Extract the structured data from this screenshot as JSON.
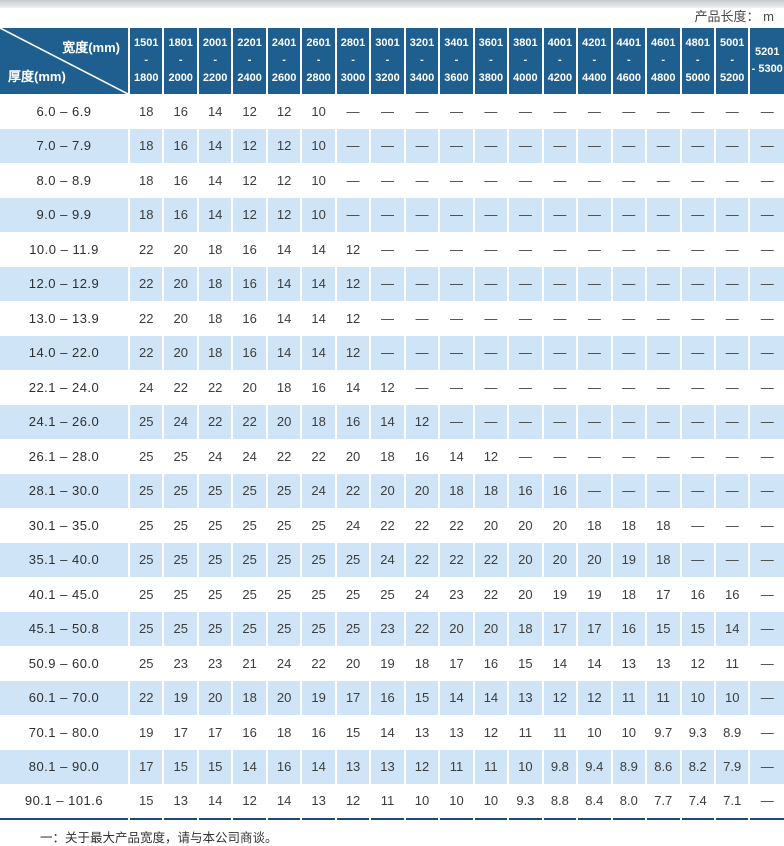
{
  "page": {
    "unit_label": "产品长度： m",
    "footnote": "一：关于最大产品宽度，请与本公司商谈。"
  },
  "colors": {
    "header_blue": "#1e5f90",
    "alt_row_blue": "#cfe4f6",
    "table_bottom_border": "#1c4c74",
    "text": "#3d3d3d"
  },
  "table": {
    "corner": {
      "width_label": "宽度(mm)",
      "thickness_label": "厚度(mm)"
    },
    "width_columns": [
      {
        "line1": "1501",
        "line2": "- 1800"
      },
      {
        "line1": "1801",
        "line2": "- 2000"
      },
      {
        "line1": "2001",
        "line2": "- 2200"
      },
      {
        "line1": "2201",
        "line2": "- 2400"
      },
      {
        "line1": "2401",
        "line2": "- 2600"
      },
      {
        "line1": "2601",
        "line2": "- 2800"
      },
      {
        "line1": "2801",
        "line2": "- 3000"
      },
      {
        "line1": "3001",
        "line2": "- 3200"
      },
      {
        "line1": "3201",
        "line2": "- 3400"
      },
      {
        "line1": "3401",
        "line2": "- 3600"
      },
      {
        "line1": "3601",
        "line2": "- 3800"
      },
      {
        "line1": "3801",
        "line2": "- 4000"
      },
      {
        "line1": "4001",
        "line2": "- 4200"
      },
      {
        "line1": "4201",
        "line2": "- 4400"
      },
      {
        "line1": "4401",
        "line2": "- 4600"
      },
      {
        "line1": "4601",
        "line2": "- 4800"
      },
      {
        "line1": "4801",
        "line2": "- 5000"
      },
      {
        "line1": "5001",
        "line2": "- 5200"
      },
      {
        "line1": "5201",
        "line2": "- 5300"
      }
    ],
    "rows": [
      {
        "label": "6.0 –  6.9",
        "values": [
          "18",
          "16",
          "14",
          "12",
          "12",
          "10",
          "—",
          "—",
          "—",
          "—",
          "—",
          "—",
          "—",
          "—",
          "—",
          "—",
          "—",
          "—",
          "—"
        ]
      },
      {
        "label": "7.0 –  7.9",
        "values": [
          "18",
          "16",
          "14",
          "12",
          "12",
          "10",
          "—",
          "—",
          "—",
          "—",
          "—",
          "—",
          "—",
          "—",
          "—",
          "—",
          "—",
          "—",
          "—"
        ]
      },
      {
        "label": "8.0 –  8.9",
        "values": [
          "18",
          "16",
          "14",
          "12",
          "12",
          "10",
          "—",
          "—",
          "—",
          "—",
          "—",
          "—",
          "—",
          "—",
          "—",
          "—",
          "—",
          "—",
          "—"
        ]
      },
      {
        "label": "9.0 –  9.9",
        "values": [
          "18",
          "16",
          "14",
          "12",
          "12",
          "10",
          "—",
          "—",
          "—",
          "—",
          "—",
          "—",
          "—",
          "—",
          "—",
          "—",
          "—",
          "—",
          "—"
        ]
      },
      {
        "label": "10.0 –  11.9",
        "values": [
          "22",
          "20",
          "18",
          "16",
          "14",
          "14",
          "12",
          "—",
          "—",
          "—",
          "—",
          "—",
          "—",
          "—",
          "—",
          "—",
          "—",
          "—",
          "—"
        ]
      },
      {
        "label": "12.0 –  12.9",
        "values": [
          "22",
          "20",
          "18",
          "16",
          "14",
          "14",
          "12",
          "—",
          "—",
          "—",
          "—",
          "—",
          "—",
          "—",
          "—",
          "—",
          "—",
          "—",
          "—"
        ]
      },
      {
        "label": "13.0 –  13.9",
        "values": [
          "22",
          "20",
          "18",
          "16",
          "14",
          "14",
          "12",
          "—",
          "—",
          "—",
          "—",
          "—",
          "—",
          "—",
          "—",
          "—",
          "—",
          "—",
          "—"
        ]
      },
      {
        "label": "14.0 –  22.0",
        "values": [
          "22",
          "20",
          "18",
          "16",
          "14",
          "14",
          "12",
          "—",
          "—",
          "—",
          "—",
          "—",
          "—",
          "—",
          "—",
          "—",
          "—",
          "—",
          "—"
        ]
      },
      {
        "label": "22.1 –  24.0",
        "values": [
          "24",
          "22",
          "22",
          "20",
          "18",
          "16",
          "14",
          "12",
          "—",
          "—",
          "—",
          "—",
          "—",
          "—",
          "—",
          "—",
          "—",
          "—",
          "—"
        ]
      },
      {
        "label": "24.1 –  26.0",
        "values": [
          "25",
          "24",
          "22",
          "22",
          "20",
          "18",
          "16",
          "14",
          "12",
          "—",
          "—",
          "—",
          "—",
          "—",
          "—",
          "—",
          "—",
          "—",
          "—"
        ]
      },
      {
        "label": "26.1 –  28.0",
        "values": [
          "25",
          "25",
          "24",
          "24",
          "22",
          "22",
          "20",
          "18",
          "16",
          "14",
          "12",
          "—",
          "—",
          "—",
          "—",
          "—",
          "—",
          "—",
          "—"
        ]
      },
      {
        "label": "28.1 –  30.0",
        "values": [
          "25",
          "25",
          "25",
          "25",
          "25",
          "24",
          "22",
          "20",
          "20",
          "18",
          "18",
          "16",
          "16",
          "—",
          "—",
          "—",
          "—",
          "—",
          "—"
        ]
      },
      {
        "label": "30.1 –  35.0",
        "values": [
          "25",
          "25",
          "25",
          "25",
          "25",
          "25",
          "24",
          "22",
          "22",
          "22",
          "20",
          "20",
          "20",
          "18",
          "18",
          "18",
          "—",
          "—",
          "—"
        ]
      },
      {
        "label": "35.1 –  40.0",
        "values": [
          "25",
          "25",
          "25",
          "25",
          "25",
          "25",
          "25",
          "24",
          "22",
          "22",
          "22",
          "20",
          "20",
          "20",
          "19",
          "18",
          "—",
          "—",
          "—"
        ]
      },
      {
        "label": "40.1 –  45.0",
        "values": [
          "25",
          "25",
          "25",
          "25",
          "25",
          "25",
          "25",
          "25",
          "24",
          "23",
          "22",
          "20",
          "19",
          "19",
          "18",
          "17",
          "16",
          "16",
          "—"
        ]
      },
      {
        "label": "45.1 –  50.8",
        "values": [
          "25",
          "25",
          "25",
          "25",
          "25",
          "25",
          "25",
          "23",
          "22",
          "20",
          "20",
          "18",
          "17",
          "17",
          "16",
          "15",
          "15",
          "14",
          "—"
        ]
      },
      {
        "label": "50.9 –  60.0",
        "values": [
          "25",
          "23",
          "23",
          "21",
          "24",
          "22",
          "20",
          "19",
          "18",
          "17",
          "16",
          "15",
          "14",
          "14",
          "13",
          "13",
          "12",
          "11",
          "—"
        ]
      },
      {
        "label": "60.1 –  70.0",
        "values": [
          "22",
          "19",
          "20",
          "18",
          "20",
          "19",
          "17",
          "16",
          "15",
          "14",
          "14",
          "13",
          "12",
          "12",
          "11",
          "11",
          "10",
          "10",
          "—"
        ]
      },
      {
        "label": "70.1 –  80.0",
        "values": [
          "19",
          "17",
          "17",
          "16",
          "18",
          "16",
          "15",
          "14",
          "13",
          "13",
          "12",
          "11",
          "11",
          "10",
          "10",
          "9.7",
          "9.3",
          "8.9",
          "—"
        ]
      },
      {
        "label": "80.1 –  90.0",
        "values": [
          "17",
          "15",
          "15",
          "14",
          "16",
          "14",
          "13",
          "13",
          "12",
          "11",
          "11",
          "10",
          "9.8",
          "9.4",
          "8.9",
          "8.6",
          "8.2",
          "7.9",
          "—"
        ]
      },
      {
        "label": "90.1 – 101.6",
        "values": [
          "15",
          "13",
          "14",
          "12",
          "14",
          "13",
          "12",
          "11",
          "10",
          "10",
          "10",
          "9.3",
          "8.8",
          "8.4",
          "8.0",
          "7.7",
          "7.4",
          "7.1",
          "—"
        ]
      }
    ]
  }
}
